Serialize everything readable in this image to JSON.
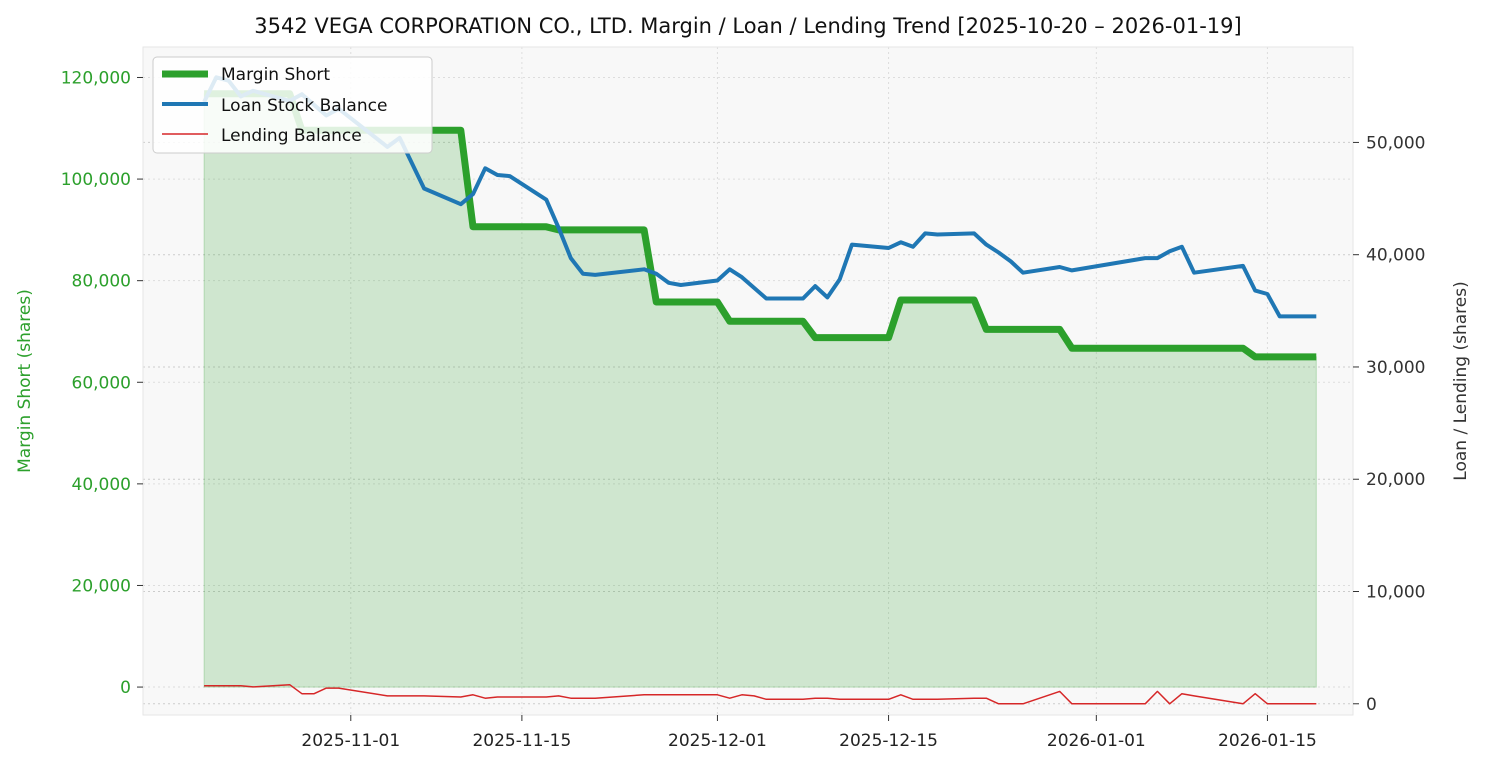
{
  "chart_data": {
    "type": "line",
    "title": "3542 VEGA CORPORATION CO., LTD. Margin / Loan / Lending Trend [2025-10-20 – 2026-01-19]",
    "xlim": [
      "2025-10-15",
      "2026-01-22"
    ],
    "x_ticks": [
      "2025-11-01",
      "2025-11-15",
      "2025-12-01",
      "2025-12-15",
      "2026-01-01",
      "2026-01-15"
    ],
    "y_left": {
      "label": "Margin Short (shares)",
      "lim": [
        -5500,
        126000
      ],
      "ticks": [
        0,
        20000,
        40000,
        60000,
        80000,
        100000,
        120000
      ],
      "tick_labels": [
        "0",
        "20,000",
        "40,000",
        "60,000",
        "80,000",
        "100,000",
        "120,000"
      ],
      "color": "#2ca02c"
    },
    "y_right": {
      "label": "Loan / Lending (shares)",
      "lim": [
        -1000,
        58500
      ],
      "ticks": [
        0,
        10000,
        20000,
        30000,
        40000,
        50000
      ],
      "tick_labels": [
        "0",
        "10,000",
        "20,000",
        "30,000",
        "40,000",
        "50,000"
      ],
      "color": "#333333"
    },
    "grid": true,
    "legend_position": "top-left",
    "series": [
      {
        "name": "Margin Short",
        "axis": "left",
        "color": "#2ca02c",
        "fill": true,
        "points": [
          [
            "2025-10-20",
            116800
          ],
          [
            "2025-10-23",
            116800
          ],
          [
            "2025-10-27",
            116800
          ],
          [
            "2025-10-28",
            109600
          ],
          [
            "2025-11-10",
            109600
          ],
          [
            "2025-11-11",
            90600
          ],
          [
            "2025-11-17",
            90600
          ],
          [
            "2025-11-18",
            90000
          ],
          [
            "2025-11-25",
            90000
          ],
          [
            "2025-11-26",
            75800
          ],
          [
            "2025-12-01",
            75800
          ],
          [
            "2025-12-02",
            72000
          ],
          [
            "2025-12-08",
            72000
          ],
          [
            "2025-12-09",
            68800
          ],
          [
            "2025-12-15",
            68800
          ],
          [
            "2025-12-16",
            76200
          ],
          [
            "2025-12-22",
            76200
          ],
          [
            "2025-12-23",
            70400
          ],
          [
            "2025-12-29",
            70400
          ],
          [
            "2025-12-30",
            66700
          ],
          [
            "2026-01-13",
            66700
          ],
          [
            "2026-01-14",
            65000
          ],
          [
            "2026-01-19",
            65000
          ]
        ]
      },
      {
        "name": "Loan Stock Balance",
        "axis": "right",
        "color": "#1f77b4",
        "points": [
          [
            "2025-10-20",
            53600
          ],
          [
            "2025-10-21",
            55800
          ],
          [
            "2025-10-22",
            55500
          ],
          [
            "2025-10-23",
            54100
          ],
          [
            "2025-10-24",
            54600
          ],
          [
            "2025-10-27",
            53700
          ],
          [
            "2025-10-28",
            54300
          ],
          [
            "2025-10-30",
            52400
          ],
          [
            "2025-10-31",
            53000
          ],
          [
            "2025-11-04",
            49600
          ],
          [
            "2025-11-05",
            50400
          ],
          [
            "2025-11-07",
            45900
          ],
          [
            "2025-11-10",
            44500
          ],
          [
            "2025-11-11",
            45400
          ],
          [
            "2025-11-12",
            47700
          ],
          [
            "2025-11-13",
            47100
          ],
          [
            "2025-11-14",
            47000
          ],
          [
            "2025-11-17",
            44900
          ],
          [
            "2025-11-18",
            42400
          ],
          [
            "2025-11-19",
            39700
          ],
          [
            "2025-11-20",
            38300
          ],
          [
            "2025-11-21",
            38200
          ],
          [
            "2025-11-25",
            38700
          ],
          [
            "2025-11-26",
            38300
          ],
          [
            "2025-11-27",
            37500
          ],
          [
            "2025-11-28",
            37300
          ],
          [
            "2025-12-01",
            37700
          ],
          [
            "2025-12-02",
            38700
          ],
          [
            "2025-12-03",
            38000
          ],
          [
            "2025-12-05",
            36100
          ],
          [
            "2025-12-08",
            36100
          ],
          [
            "2025-12-09",
            37200
          ],
          [
            "2025-12-10",
            36200
          ],
          [
            "2025-12-11",
            37800
          ],
          [
            "2025-12-12",
            40900
          ],
          [
            "2025-12-15",
            40600
          ],
          [
            "2025-12-16",
            41100
          ],
          [
            "2025-12-17",
            40700
          ],
          [
            "2025-12-18",
            41900
          ],
          [
            "2025-12-19",
            41800
          ],
          [
            "2025-12-22",
            41900
          ],
          [
            "2025-12-23",
            40900
          ],
          [
            "2025-12-24",
            40200
          ],
          [
            "2025-12-25",
            39400
          ],
          [
            "2025-12-26",
            38400
          ],
          [
            "2025-12-29",
            38900
          ],
          [
            "2025-12-30",
            38600
          ],
          [
            "2026-01-05",
            39700
          ],
          [
            "2026-01-06",
            39700
          ],
          [
            "2026-01-07",
            40300
          ],
          [
            "2026-01-08",
            40700
          ],
          [
            "2026-01-09",
            38400
          ],
          [
            "2026-01-13",
            39000
          ],
          [
            "2026-01-14",
            36800
          ],
          [
            "2026-01-15",
            36500
          ],
          [
            "2026-01-16",
            34500
          ],
          [
            "2026-01-19",
            34500
          ]
        ]
      },
      {
        "name": "Lending Balance",
        "axis": "right",
        "color": "#d62728",
        "points": [
          [
            "2025-10-20",
            1600
          ],
          [
            "2025-10-23",
            1600
          ],
          [
            "2025-10-24",
            1500
          ],
          [
            "2025-10-27",
            1700
          ],
          [
            "2025-10-28",
            900
          ],
          [
            "2025-10-29",
            900
          ],
          [
            "2025-10-30",
            1400
          ],
          [
            "2025-10-31",
            1400
          ],
          [
            "2025-11-04",
            700
          ],
          [
            "2025-11-07",
            700
          ],
          [
            "2025-11-10",
            600
          ],
          [
            "2025-11-11",
            800
          ],
          [
            "2025-11-12",
            500
          ],
          [
            "2025-11-13",
            600
          ],
          [
            "2025-11-17",
            600
          ],
          [
            "2025-11-18",
            700
          ],
          [
            "2025-11-19",
            500
          ],
          [
            "2025-11-21",
            500
          ],
          [
            "2025-11-25",
            800
          ],
          [
            "2025-12-01",
            800
          ],
          [
            "2025-12-02",
            500
          ],
          [
            "2025-12-03",
            800
          ],
          [
            "2025-12-04",
            700
          ],
          [
            "2025-12-05",
            400
          ],
          [
            "2025-12-08",
            400
          ],
          [
            "2025-12-09",
            500
          ],
          [
            "2025-12-10",
            500
          ],
          [
            "2025-12-11",
            400
          ],
          [
            "2025-12-15",
            400
          ],
          [
            "2025-12-16",
            800
          ],
          [
            "2025-12-17",
            400
          ],
          [
            "2025-12-19",
            400
          ],
          [
            "2025-12-22",
            500
          ],
          [
            "2025-12-23",
            500
          ],
          [
            "2025-12-24",
            0
          ],
          [
            "2025-12-26",
            0
          ],
          [
            "2025-12-29",
            1100
          ],
          [
            "2025-12-30",
            0
          ],
          [
            "2026-01-05",
            0
          ],
          [
            "2026-01-06",
            1100
          ],
          [
            "2026-01-07",
            0
          ],
          [
            "2026-01-08",
            900
          ],
          [
            "2026-01-09",
            700
          ],
          [
            "2026-01-13",
            0
          ],
          [
            "2026-01-14",
            900
          ],
          [
            "2026-01-15",
            0
          ],
          [
            "2026-01-19",
            0
          ]
        ]
      }
    ]
  }
}
